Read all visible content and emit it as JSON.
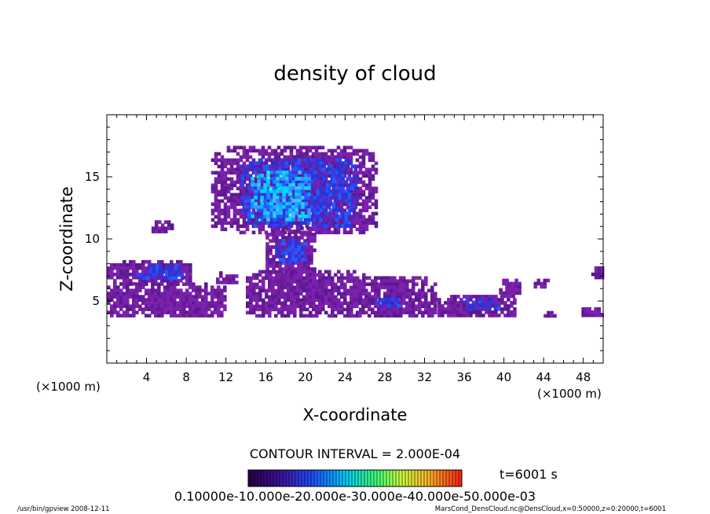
{
  "chart_data": {
    "type": "heatmap",
    "title": "density of cloud",
    "xlabel": "X-coordinate",
    "ylabel": "Z-coordinate",
    "x_unit": "(×1000 m)",
    "y_unit": "(×1000 m)",
    "xlim": [
      0,
      50
    ],
    "ylim": [
      0,
      20
    ],
    "x_ticks": [
      4,
      8,
      12,
      16,
      20,
      24,
      28,
      32,
      36,
      40,
      44,
      48
    ],
    "y_ticks": [
      5,
      10,
      15
    ],
    "contour_interval_text": "CONTOUR INTERVAL = 2.000E-04",
    "time_text": "t=6001 s",
    "colorbar_labels_text": "0.10000e-10.000e-20.000e-30.000e-40.000e-50.000e-03",
    "colorbar_colors": [
      "#4b0082",
      "#1f3cff",
      "#00c8ff",
      "#00ff00",
      "#ffff00",
      "#ff2000"
    ],
    "footer_left": "/usr/bin/gpview   2008-12-11",
    "footer_right": "MarsCond_DensCloud.nc@DensCloud,x=0:50000,z=0:20000,t=6001",
    "regions": [
      {
        "name": "main-cloud-purple",
        "x": [
          10.5,
          27
        ],
        "z": [
          10.5,
          17.5
        ],
        "level": 1
      },
      {
        "name": "main-cloud-blue",
        "x": [
          13.5,
          25
        ],
        "z": [
          11,
          16.5
        ],
        "level": 2
      },
      {
        "name": "main-cloud-core",
        "x": [
          14.5,
          20.5
        ],
        "z": [
          11.5,
          15.5
        ],
        "level": 3
      },
      {
        "name": "column-purple",
        "x": [
          16,
          21
        ],
        "z": [
          6.5,
          11
        ],
        "level": 1
      },
      {
        "name": "column-blue",
        "x": [
          17,
          20
        ],
        "z": [
          8,
          10
        ],
        "level": 2
      },
      {
        "name": "left-cloud-purple",
        "x": [
          0,
          8.5
        ],
        "z": [
          6.5,
          8.3
        ],
        "level": 1
      },
      {
        "name": "left-cloud-blue",
        "x": [
          3,
          7.5
        ],
        "z": [
          6.8,
          8
        ],
        "level": 2
      },
      {
        "name": "lower-band-left",
        "x": [
          0,
          12
        ],
        "z": [
          3.8,
          6.5
        ],
        "level": 1
      },
      {
        "name": "lower-band-mid",
        "x": [
          14,
          26
        ],
        "z": [
          3.8,
          7.5
        ],
        "level": 1
      },
      {
        "name": "lower-band-right1",
        "x": [
          25,
          33
        ],
        "z": [
          3.8,
          7
        ],
        "level": 1
      },
      {
        "name": "lower-band-right1-blue",
        "x": [
          27,
          29.5
        ],
        "z": [
          4.5,
          5.5
        ],
        "level": 2
      },
      {
        "name": "lower-band-right2",
        "x": [
          33,
          41
        ],
        "z": [
          3.8,
          5.5
        ],
        "level": 1
      },
      {
        "name": "lower-band-right2-blue",
        "x": [
          35.5,
          39.5
        ],
        "z": [
          4.3,
          5.3
        ],
        "level": 2
      },
      {
        "name": "small-blob-12",
        "x": [
          11,
          13
        ],
        "z": [
          6.5,
          7.4
        ],
        "level": 1
      },
      {
        "name": "small-blob-45",
        "x": [
          4.5,
          6.5
        ],
        "z": [
          10.5,
          11.5
        ],
        "level": 1
      },
      {
        "name": "small-blob-a",
        "x": [
          39.5,
          41.5
        ],
        "z": [
          5.5,
          6.8
        ],
        "level": 1
      },
      {
        "name": "small-blob-b",
        "x": [
          43,
          44.5
        ],
        "z": [
          6.2,
          6.8
        ],
        "level": 1
      },
      {
        "name": "small-blob-c",
        "x": [
          44,
          45
        ],
        "z": [
          3.8,
          4.2
        ],
        "level": 1
      },
      {
        "name": "small-blob-d",
        "x": [
          47.5,
          50
        ],
        "z": [
          3.8,
          4.5
        ],
        "level": 1
      },
      {
        "name": "small-blob-e",
        "x": [
          48.8,
          50
        ],
        "z": [
          7,
          7.8
        ],
        "level": 1
      }
    ]
  }
}
